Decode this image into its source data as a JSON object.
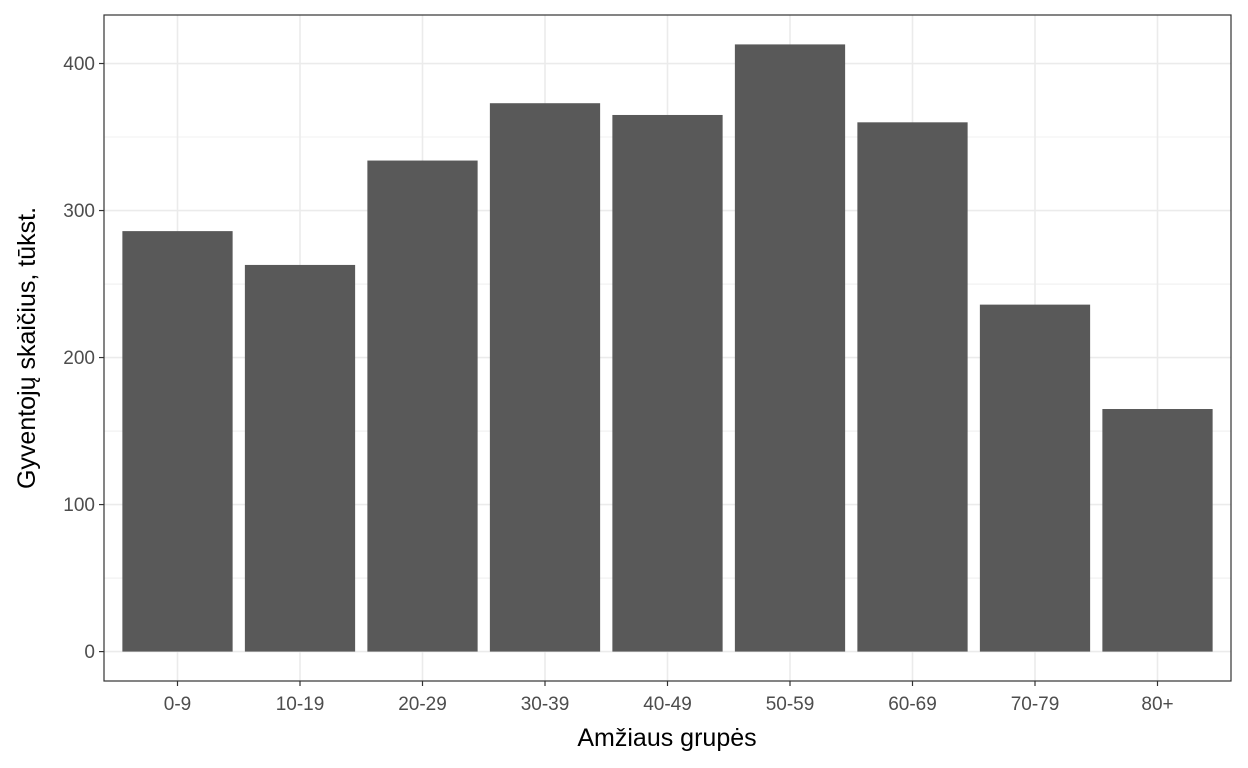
{
  "chart_data": {
    "type": "bar",
    "xlabel": "Amžiaus grupės",
    "ylabel": "Gyventojų skaičius, tūkst.",
    "categories": [
      "0-9",
      "10-19",
      "20-29",
      "30-39",
      "40-49",
      "50-59",
      "60-69",
      "70-79",
      "80+"
    ],
    "values": [
      286,
      263,
      334,
      373,
      365,
      413,
      360,
      236,
      165
    ],
    "ylim": [
      -20,
      433
    ],
    "yticks": [
      0,
      100,
      200,
      300,
      400
    ],
    "grid": true,
    "bar_color": "#595959",
    "grid_color": "#ebebeb",
    "panel_border_color": "#333333"
  }
}
